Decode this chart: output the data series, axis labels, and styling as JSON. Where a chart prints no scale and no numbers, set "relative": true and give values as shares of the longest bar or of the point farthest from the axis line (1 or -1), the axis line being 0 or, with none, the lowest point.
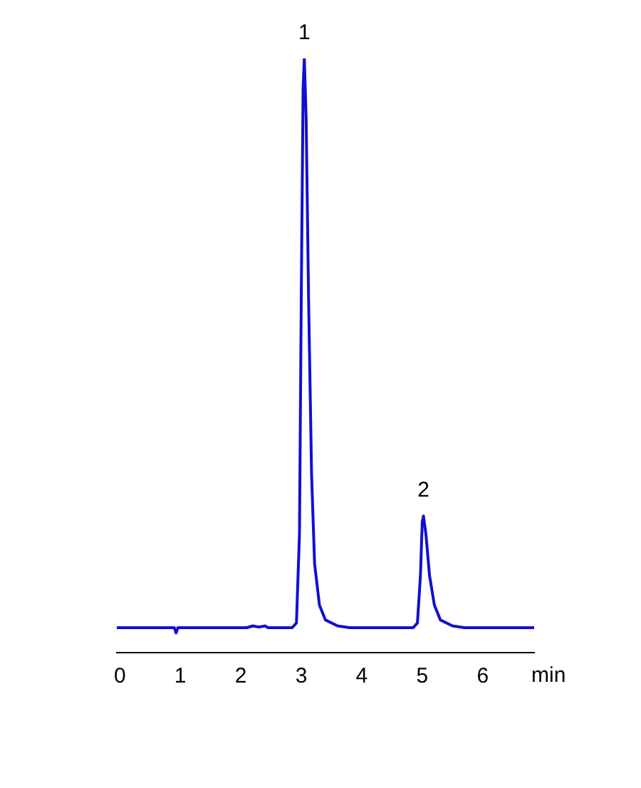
{
  "chart_data": {
    "type": "line",
    "relative": true,
    "xlabel": "min",
    "xlim": [
      -0.05,
      6.85
    ],
    "xticks": [
      0,
      1,
      2,
      3,
      4,
      5,
      6
    ],
    "grid": false,
    "legend": false,
    "marker": "none",
    "line_style": "solid",
    "series": [
      {
        "color": "#1010d0",
        "x": [
          -0.05,
          0.9,
          0.93,
          0.96,
          2.1,
          2.2,
          2.3,
          2.4,
          2.45,
          2.85,
          2.92,
          2.97,
          3.0,
          3.03,
          3.05,
          3.08,
          3.12,
          3.17,
          3.22,
          3.3,
          3.4,
          3.6,
          3.8,
          4.85,
          4.92,
          4.97,
          5.0,
          5.02,
          5.06,
          5.12,
          5.2,
          5.3,
          5.5,
          5.7,
          6.85
        ],
        "values": [
          0.042,
          0.042,
          0.033,
          0.042,
          0.042,
          0.045,
          0.043,
          0.045,
          0.042,
          0.042,
          0.05,
          0.2,
          0.6,
          0.95,
          1,
          0.9,
          0.6,
          0.3,
          0.15,
          0.08,
          0.055,
          0.045,
          0.042,
          0.042,
          0.05,
          0.13,
          0.22,
          0.23,
          0.2,
          0.13,
          0.08,
          0.055,
          0.045,
          0.042,
          0.042
        ]
      }
    ],
    "annotations": [
      {
        "text": "1",
        "x": 3.05,
        "y": 1
      },
      {
        "text": "2",
        "x": 5.02,
        "y": 0.23
      }
    ]
  }
}
